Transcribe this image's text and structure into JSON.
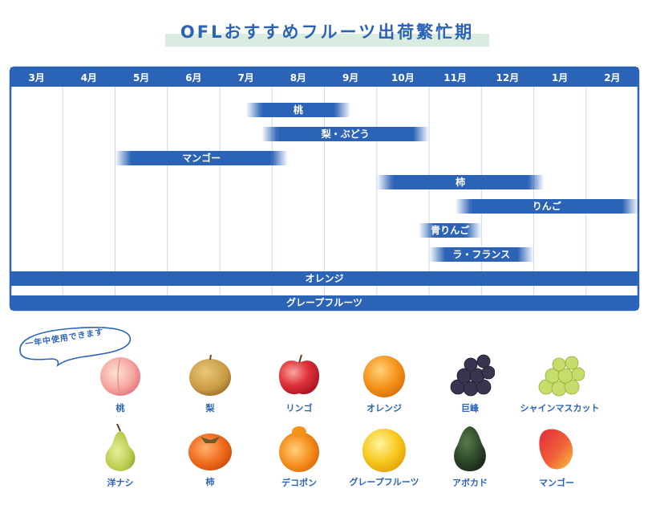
{
  "title": "OFLおすすめフルーツ出荷繁忙期",
  "chart_data": {
    "type": "gantt",
    "months": [
      "3月",
      "4月",
      "5月",
      "6月",
      "7月",
      "8月",
      "9月",
      "10月",
      "11月",
      "12月",
      "1月",
      "2月"
    ],
    "bars": [
      {
        "label": "桃",
        "start": 4.5,
        "end": 6.5
      },
      {
        "label": "梨・ぶどう",
        "start": 4.8,
        "end": 8.0
      },
      {
        "label": "マンゴー",
        "start": 2.0,
        "end": 5.3
      },
      {
        "label": "柿",
        "start": 7.0,
        "end": 10.2
      },
      {
        "label": "りんご",
        "start": 8.5,
        "end": 12.0
      },
      {
        "label": "青りんご",
        "start": 7.8,
        "end": 9.0
      },
      {
        "label": "ラ・フランス",
        "start": 8.0,
        "end": 10.0
      },
      {
        "label": "オレンジ",
        "start": 0,
        "end": 12.0
      },
      {
        "label": "グレープフルーツ",
        "start": 0,
        "end": 12.0
      }
    ]
  },
  "bubble_text": "一年中使用できます",
  "colors": {
    "primary": "#2b63b6",
    "highlight": "#d9ecdf",
    "grid": "#c9d9ee"
  },
  "fruits": [
    {
      "name": "桃",
      "icon": "peach-icon"
    },
    {
      "name": "梨",
      "icon": "pear-icon"
    },
    {
      "name": "リンゴ",
      "icon": "apple-icon"
    },
    {
      "name": "オレンジ",
      "icon": "orange-icon"
    },
    {
      "name": "巨峰",
      "icon": "grape-icon"
    },
    {
      "name": "シャインマスカット",
      "icon": "muscat-icon"
    },
    {
      "name": "洋ナシ",
      "icon": "western-pear-icon"
    },
    {
      "name": "柿",
      "icon": "persimmon-icon"
    },
    {
      "name": "デコポン",
      "icon": "dekopon-icon"
    },
    {
      "name": "グレープフルーツ",
      "icon": "grapefruit-icon"
    },
    {
      "name": "アボカド",
      "icon": "avocado-icon"
    },
    {
      "name": "マンゴー",
      "icon": "mango-icon"
    }
  ]
}
